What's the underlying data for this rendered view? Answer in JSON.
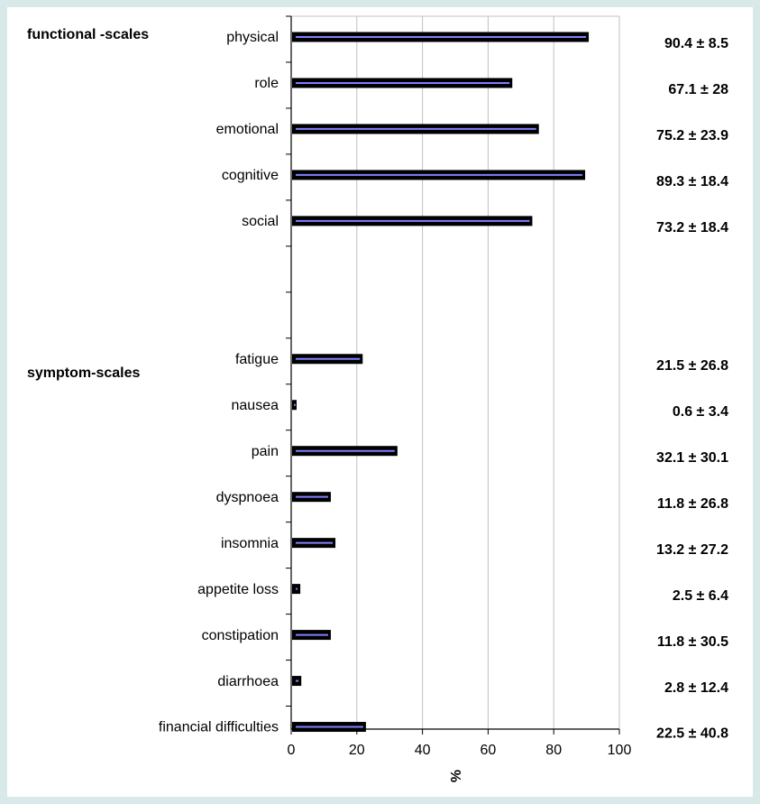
{
  "chart_data": {
    "type": "bar",
    "orientation": "horizontal",
    "group_labels": [
      {
        "text": "functional -scales",
        "row": 0
      },
      {
        "text": "symptom-scales",
        "row": 7.35
      }
    ],
    "categories": [
      "physical",
      "role",
      "emotional",
      "cognitive",
      "social",
      "",
      "",
      "fatigue",
      "nausea",
      "pain",
      "dyspnoea",
      "insomnia",
      "appetite loss",
      "constipation",
      "diarrhoea",
      "financial difficulties"
    ],
    "values": [
      90.4,
      67.1,
      75.2,
      89.3,
      73.2,
      null,
      null,
      21.5,
      0.6,
      32.1,
      11.8,
      13.2,
      2.5,
      11.8,
      2.8,
      22.5
    ],
    "annotations": [
      "90.4 ±  8.5",
      "67.1 ± 28",
      "75.2 ± 23.9",
      "89.3 ± 18.4",
      "73.2 ± 18.4",
      "21.5 ± 26.8",
      "0.6 ±  3.4",
      "32.1 ± 30.1",
      "11.8 ± 26.8",
      "13.2 ± 27.2",
      "2.5 ±  6.4",
      "11.8 ± 30.5",
      "2.8 ± 12.4",
      "22.5 ± 40.8"
    ],
    "xlabel": "%",
    "xlim": [
      0,
      100
    ],
    "xticks": [
      0,
      20,
      40,
      60,
      80,
      100
    ],
    "grid": true,
    "colors": {
      "bar_border": "#000000",
      "bar_fill": "#8080ff",
      "grid": "#c0c0c0"
    }
  }
}
